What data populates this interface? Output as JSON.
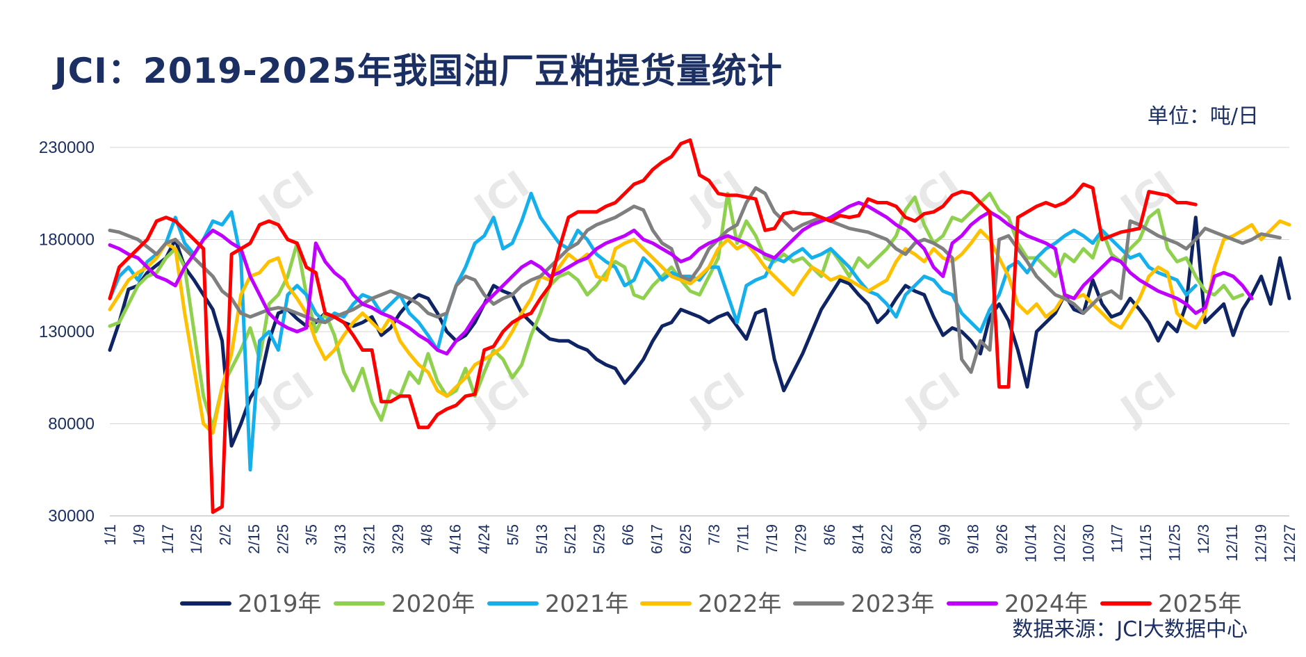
{
  "title": "JCI：2019-2025年我国油厂豆粕提货量统计",
  "unit": "单位：吨/日",
  "source": "数据来源：JCI大数据中心",
  "watermark": "JCI",
  "chart_data": {
    "type": "line",
    "ylim": [
      30000,
      230000
    ],
    "yticks": [
      30000,
      80000,
      130000,
      180000,
      230000
    ],
    "ytick_labels": [
      "30000",
      "80000",
      "130000",
      "180000",
      "230000"
    ],
    "x_labels": [
      "1/1",
      "1/9",
      "1/17",
      "1/25",
      "2/2",
      "2/15",
      "2/25",
      "3/5",
      "3/13",
      "3/21",
      "3/29",
      "4/8",
      "4/16",
      "4/24",
      "5/5",
      "5/13",
      "5/21",
      "5/29",
      "6/6",
      "6/17",
      "6/25",
      "7/3",
      "7/11",
      "7/19",
      "7/29",
      "8/6",
      "8/14",
      "8/22",
      "8/30",
      "9/9",
      "9/18",
      "9/26",
      "10/14",
      "10/22",
      "10/30",
      "11/7",
      "11/15",
      "11/25",
      "12/3",
      "12/11",
      "12/19",
      "12/27"
    ],
    "grid": "horizontal",
    "legend_position": "bottom",
    "series": [
      {
        "name": "2019年",
        "color": "#0f2464",
        "values": [
          120000,
          135000,
          153000,
          155000,
          162000,
          166000,
          170000,
          180000,
          165000,
          158000,
          150000,
          142000,
          125000,
          68000,
          80000,
          94000,
          102000,
          125000,
          140000,
          142000,
          137000,
          133000,
          135000,
          140000,
          138000,
          135000,
          133000,
          135000,
          138000,
          128000,
          132000,
          140000,
          146000,
          150000,
          148000,
          140000,
          130000,
          125000,
          128000,
          135000,
          145000,
          155000,
          152000,
          150000,
          140000,
          135000,
          130000,
          126000,
          125000,
          125000,
          122000,
          120000,
          115000,
          112000,
          110000,
          102000,
          108000,
          115000,
          125000,
          133000,
          135000,
          142000,
          140000,
          138000,
          135000,
          138000,
          140000,
          133000,
          126000,
          140000,
          142000,
          115000,
          98000,
          108000,
          118000,
          130000,
          142000,
          150000,
          158000,
          156000,
          150000,
          145000,
          135000,
          140000,
          148000,
          155000,
          152000,
          150000,
          138000,
          128000,
          132000,
          130000,
          125000,
          118000,
          138000,
          145000,
          136000,
          120000,
          100000,
          130000,
          135000,
          140000,
          150000,
          142000,
          140000,
          158000,
          145000,
          138000,
          140000,
          148000,
          142000,
          135000,
          125000,
          135000,
          130000,
          145000,
          192000,
          135000,
          140000,
          145000,
          128000,
          142000,
          150000,
          160000,
          145000,
          170000,
          148000
        ]
      },
      {
        "name": "2020年",
        "color": "#8fd14f",
        "values": [
          133000,
          135000,
          145000,
          155000,
          160000,
          162000,
          170000,
          175000,
          165000,
          130000,
          95000,
          78000,
          100000,
          110000,
          120000,
          132000,
          115000,
          145000,
          150000,
          160000,
          178000,
          150000,
          130000,
          140000,
          128000,
          108000,
          98000,
          110000,
          92000,
          82000,
          98000,
          95000,
          108000,
          102000,
          118000,
          103000,
          95000,
          98000,
          110000,
          95000,
          108000,
          120000,
          115000,
          105000,
          112000,
          128000,
          140000,
          155000,
          160000,
          162000,
          158000,
          150000,
          155000,
          162000,
          168000,
          165000,
          150000,
          148000,
          155000,
          160000,
          165000,
          158000,
          152000,
          150000,
          160000,
          170000,
          205000,
          178000,
          190000,
          182000,
          170000,
          168000,
          172000,
          168000,
          170000,
          165000,
          160000,
          175000,
          168000,
          160000,
          170000,
          165000,
          170000,
          175000,
          182000,
          196000,
          203000,
          188000,
          178000,
          182000,
          192000,
          190000,
          195000,
          200000,
          205000,
          196000,
          192000,
          178000,
          170000,
          170000,
          165000,
          160000,
          172000,
          168000,
          175000,
          170000,
          185000,
          172000,
          168000,
          175000,
          180000,
          192000,
          196000,
          175000,
          168000,
          170000,
          160000,
          152000,
          150000,
          155000,
          148000,
          150000
        ]
      },
      {
        "name": "2021年",
        "color": "#15b0ec",
        "values": [
          148000,
          160000,
          165000,
          158000,
          168000,
          172000,
          178000,
          192000,
          178000,
          172000,
          180000,
          190000,
          188000,
          195000,
          170000,
          55000,
          125000,
          130000,
          120000,
          150000,
          155000,
          150000,
          140000,
          135000,
          140000,
          138000,
          145000,
          150000,
          148000,
          140000,
          145000,
          150000,
          140000,
          135000,
          128000,
          120000,
          140000,
          155000,
          165000,
          178000,
          182000,
          192000,
          175000,
          178000,
          190000,
          205000,
          192000,
          185000,
          178000,
          175000,
          185000,
          180000,
          172000,
          168000,
          165000,
          155000,
          158000,
          170000,
          165000,
          158000,
          162000,
          160000,
          160000,
          158000,
          165000,
          165000,
          150000,
          135000,
          155000,
          158000,
          160000,
          170000,
          168000,
          172000,
          175000,
          170000,
          172000,
          175000,
          170000,
          165000,
          158000,
          152000,
          150000,
          145000,
          138000,
          150000,
          155000,
          160000,
          158000,
          152000,
          150000,
          140000,
          135000,
          130000,
          142000,
          150000,
          165000,
          168000,
          162000,
          170000,
          175000,
          178000,
          182000,
          185000,
          182000,
          178000,
          185000,
          180000,
          175000,
          170000,
          172000,
          165000,
          162000,
          160000,
          158000,
          150000,
          155000
        ]
      },
      {
        "name": "2022年",
        "color": "#ffc000",
        "values": [
          142000,
          150000,
          158000,
          162000,
          165000,
          170000,
          178000,
          175000,
          140000,
          110000,
          80000,
          75000,
          100000,
          118000,
          150000,
          160000,
          162000,
          168000,
          170000,
          155000,
          148000,
          140000,
          125000,
          115000,
          120000,
          128000,
          135000,
          140000,
          135000,
          130000,
          138000,
          125000,
          118000,
          112000,
          108000,
          98000,
          95000,
          100000,
          105000,
          112000,
          115000,
          118000,
          122000,
          130000,
          140000,
          148000,
          160000,
          158000,
          165000,
          172000,
          168000,
          172000,
          160000,
          158000,
          175000,
          178000,
          180000,
          175000,
          170000,
          165000,
          160000,
          158000,
          156000,
          160000,
          165000,
          175000,
          180000,
          175000,
          178000,
          172000,
          165000,
          160000,
          155000,
          150000,
          158000,
          165000,
          162000,
          158000,
          160000,
          158000,
          155000,
          152000,
          155000,
          158000,
          168000,
          175000,
          172000,
          168000,
          175000,
          170000,
          168000,
          172000,
          178000,
          185000,
          180000,
          170000,
          160000,
          145000,
          140000,
          145000,
          138000,
          142000,
          150000,
          148000,
          150000,
          145000,
          140000,
          135000,
          132000,
          140000,
          148000,
          160000,
          165000,
          162000,
          140000,
          135000,
          132000,
          140000,
          165000,
          180000,
          182000,
          185000,
          188000,
          180000,
          185000,
          190000,
          188000
        ]
      },
      {
        "name": "2023年",
        "color": "#7f7f7f",
        "values": [
          185000,
          184000,
          182000,
          180000,
          176000,
          172000,
          178000,
          180000,
          175000,
          170000,
          165000,
          160000,
          152000,
          148000,
          140000,
          138000,
          140000,
          142000,
          143000,
          142000,
          140000,
          138000,
          136000,
          135000,
          138000,
          140000,
          142000,
          145000,
          148000,
          150000,
          152000,
          150000,
          148000,
          145000,
          140000,
          138000,
          140000,
          155000,
          160000,
          158000,
          150000,
          145000,
          148000,
          150000,
          155000,
          158000,
          160000,
          165000,
          170000,
          175000,
          178000,
          185000,
          188000,
          190000,
          192000,
          195000,
          198000,
          196000,
          185000,
          178000,
          175000,
          160000,
          158000,
          165000,
          175000,
          180000,
          185000,
          188000,
          200000,
          208000,
          205000,
          195000,
          190000,
          185000,
          188000,
          190000,
          192000,
          190000,
          188000,
          186000,
          185000,
          184000,
          182000,
          180000,
          175000,
          172000,
          178000,
          180000,
          178000,
          175000,
          170000,
          115000,
          108000,
          125000,
          120000,
          180000,
          182000,
          175000,
          168000,
          160000,
          155000,
          150000,
          148000,
          145000,
          140000,
          145000,
          150000,
          152000,
          148000,
          190000,
          188000,
          185000,
          182000,
          180000,
          178000,
          175000,
          180000,
          186000,
          184000,
          182000,
          180000,
          178000,
          180000,
          183000,
          182000,
          181000
        ]
      },
      {
        "name": "2024年",
        "color": "#c000ff",
        "values": [
          177000,
          175000,
          172000,
          170000,
          165000,
          160000,
          158000,
          155000,
          165000,
          172000,
          180000,
          185000,
          182000,
          178000,
          175000,
          160000,
          150000,
          140000,
          135000,
          132000,
          130000,
          132000,
          178000,
          168000,
          162000,
          158000,
          150000,
          145000,
          143000,
          140000,
          138000,
          135000,
          132000,
          128000,
          125000,
          120000,
          118000,
          125000,
          130000,
          138000,
          145000,
          150000,
          155000,
          160000,
          165000,
          168000,
          165000,
          160000,
          162000,
          165000,
          168000,
          170000,
          175000,
          178000,
          180000,
          182000,
          185000,
          180000,
          178000,
          175000,
          172000,
          168000,
          170000,
          175000,
          178000,
          180000,
          182000,
          180000,
          178000,
          175000,
          172000,
          170000,
          175000,
          180000,
          185000,
          188000,
          190000,
          192000,
          195000,
          198000,
          200000,
          198000,
          195000,
          192000,
          188000,
          185000,
          180000,
          175000,
          165000,
          160000,
          178000,
          182000,
          188000,
          192000,
          195000,
          192000,
          188000,
          185000,
          182000,
          180000,
          178000,
          175000,
          150000,
          148000,
          155000,
          160000,
          165000,
          170000,
          168000,
          162000,
          158000,
          155000,
          152000,
          150000,
          148000,
          145000,
          140000,
          143000,
          160000,
          162000,
          160000,
          155000,
          148000
        ]
      },
      {
        "name": "2025年",
        "color": "#ff0000",
        "values": [
          148000,
          165000,
          170000,
          175000,
          180000,
          190000,
          192000,
          190000,
          185000,
          180000,
          175000,
          32000,
          35000,
          172000,
          175000,
          178000,
          188000,
          190000,
          188000,
          180000,
          178000,
          165000,
          162000,
          140000,
          138000,
          135000,
          128000,
          120000,
          120000,
          92000,
          92000,
          95000,
          95000,
          78000,
          78000,
          85000,
          88000,
          90000,
          95000,
          96000,
          120000,
          122000,
          130000,
          135000,
          138000,
          140000,
          148000,
          155000,
          175000,
          192000,
          195000,
          195000,
          195000,
          198000,
          200000,
          205000,
          210000,
          212000,
          218000,
          222000,
          225000,
          232000,
          234000,
          215000,
          212000,
          205000,
          204000,
          204000,
          203000,
          202000,
          185000,
          186000,
          194000,
          195000,
          194000,
          194000,
          192000,
          190000,
          193000,
          192000,
          193000,
          202000,
          200000,
          200000,
          198000,
          192000,
          190000,
          194000,
          195000,
          198000,
          204000,
          206000,
          205000,
          200000,
          195000,
          100000,
          100000,
          192000,
          195000,
          198000,
          200000,
          198000,
          200000,
          204000,
          210000,
          208000,
          180000,
          182000,
          184000,
          185000,
          186000,
          206000,
          205000,
          204000,
          200000,
          200000,
          199000
        ]
      }
    ]
  }
}
